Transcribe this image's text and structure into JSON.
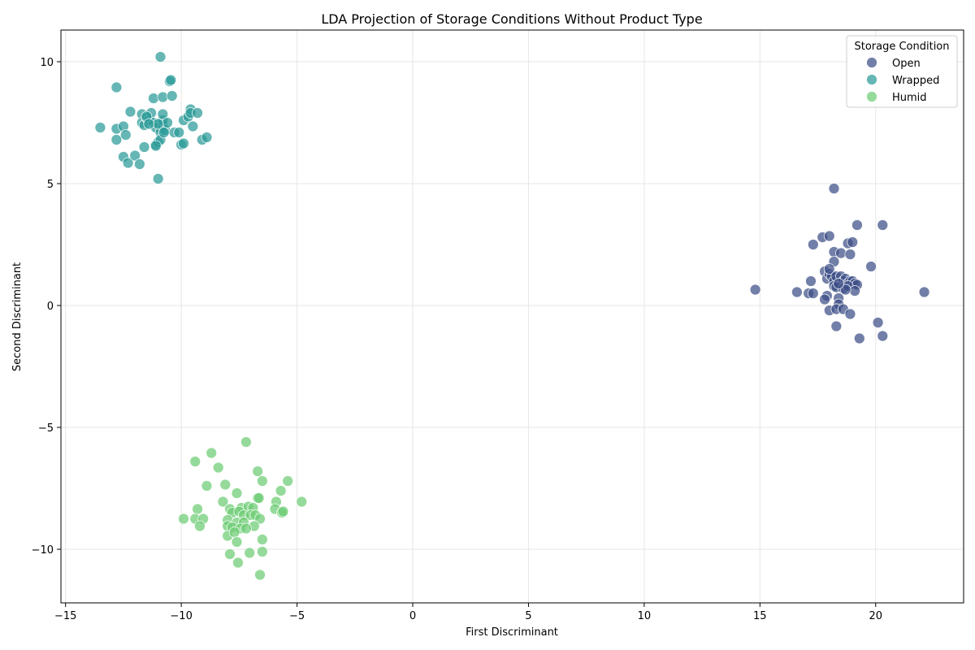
{
  "chart_data": {
    "type": "scatter",
    "title": "LDA Projection of Storage Conditions Without Product Type",
    "xlabel": "First Discriminant",
    "ylabel": "Second Discriminant",
    "xlim": [
      -15.2,
      23.8
    ],
    "ylim": [
      -12.2,
      11.3
    ],
    "xticks": [
      -15,
      -10,
      -5,
      0,
      5,
      10,
      15,
      20
    ],
    "yticks": [
      -10,
      -5,
      0,
      5,
      10
    ],
    "xtick_labels": [
      "−15",
      "−10",
      "−5",
      "0",
      "5",
      "10",
      "15",
      "20"
    ],
    "ytick_labels": [
      "−10",
      "−5",
      "0",
      "5",
      "10"
    ],
    "grid": true,
    "legend": {
      "title": "Storage Condition",
      "placement": "top-right"
    },
    "series": [
      {
        "name": "Open",
        "color": "#3b4d87",
        "points": [
          [
            14.8,
            0.65
          ],
          [
            16.6,
            0.55
          ],
          [
            17.1,
            0.5
          ],
          [
            17.3,
            0.5
          ],
          [
            17.2,
            1.0
          ],
          [
            17.3,
            2.5
          ],
          [
            17.7,
            2.8
          ],
          [
            18.0,
            2.85
          ],
          [
            18.2,
            4.8
          ],
          [
            18.2,
            2.2
          ],
          [
            18.2,
            1.8
          ],
          [
            18.5,
            2.15
          ],
          [
            18.8,
            2.55
          ],
          [
            19.0,
            2.6
          ],
          [
            19.2,
            3.3
          ],
          [
            20.3,
            3.3
          ],
          [
            18.9,
            2.1
          ],
          [
            19.8,
            1.6
          ],
          [
            17.8,
            1.4
          ],
          [
            17.9,
            1.1
          ],
          [
            18.0,
            1.3
          ],
          [
            18.1,
            1.2
          ],
          [
            18.0,
            1.5
          ],
          [
            18.2,
            1.0
          ],
          [
            18.3,
            1.2
          ],
          [
            18.5,
            1.2
          ],
          [
            18.6,
            1.0
          ],
          [
            18.7,
            1.1
          ],
          [
            18.8,
            0.9
          ],
          [
            18.9,
            1.0
          ],
          [
            19.0,
            1.0
          ],
          [
            19.1,
            0.9
          ],
          [
            19.2,
            0.85
          ],
          [
            18.2,
            0.8
          ],
          [
            18.3,
            0.75
          ],
          [
            18.6,
            0.7
          ],
          [
            18.8,
            0.8
          ],
          [
            19.1,
            0.6
          ],
          [
            18.7,
            0.65
          ],
          [
            18.4,
            0.9
          ],
          [
            17.9,
            0.4
          ],
          [
            17.8,
            0.25
          ],
          [
            18.4,
            0.3
          ],
          [
            18.4,
            0.05
          ],
          [
            18.0,
            -0.2
          ],
          [
            18.3,
            -0.15
          ],
          [
            18.6,
            -0.15
          ],
          [
            18.9,
            -0.35
          ],
          [
            18.3,
            -0.85
          ],
          [
            19.3,
            -1.35
          ],
          [
            20.1,
            -0.7
          ],
          [
            20.3,
            -1.25
          ],
          [
            22.1,
            0.55
          ]
        ]
      },
      {
        "name": "Wrapped",
        "color": "#2a9a97",
        "points": [
          [
            -13.5,
            7.3
          ],
          [
            -12.8,
            8.95
          ],
          [
            -12.8,
            7.25
          ],
          [
            -12.8,
            6.8
          ],
          [
            -12.5,
            7.35
          ],
          [
            -12.5,
            6.1
          ],
          [
            -12.4,
            7.0
          ],
          [
            -12.3,
            5.85
          ],
          [
            -12.2,
            7.95
          ],
          [
            -12.0,
            6.15
          ],
          [
            -11.8,
            5.8
          ],
          [
            -11.7,
            7.85
          ],
          [
            -11.7,
            7.5
          ],
          [
            -11.6,
            7.4
          ],
          [
            -11.6,
            6.5
          ],
          [
            -11.5,
            7.7
          ],
          [
            -11.4,
            7.6
          ],
          [
            -11.3,
            7.9
          ],
          [
            -11.2,
            7.5
          ],
          [
            -11.2,
            8.5
          ],
          [
            -11.1,
            7.3
          ],
          [
            -11.1,
            6.6
          ],
          [
            -11.0,
            6.7
          ],
          [
            -11.0,
            5.2
          ],
          [
            -10.9,
            7.1
          ],
          [
            -10.9,
            6.8
          ],
          [
            -10.8,
            7.4
          ],
          [
            -10.8,
            7.6
          ],
          [
            -10.8,
            8.55
          ],
          [
            -10.8,
            7.85
          ],
          [
            -10.7,
            7.2
          ],
          [
            -10.6,
            7.5
          ],
          [
            -10.9,
            10.2
          ],
          [
            -10.5,
            9.2
          ],
          [
            -10.45,
            9.25
          ],
          [
            -10.4,
            8.6
          ],
          [
            -10.3,
            7.1
          ],
          [
            -10.1,
            7.1
          ],
          [
            -10.0,
            6.6
          ],
          [
            -9.9,
            6.65
          ],
          [
            -9.9,
            7.6
          ],
          [
            -9.7,
            7.75
          ],
          [
            -9.6,
            8.05
          ],
          [
            -9.6,
            7.9
          ],
          [
            -9.5,
            7.35
          ],
          [
            -9.3,
            7.9
          ],
          [
            -9.1,
            6.8
          ],
          [
            -8.9,
            6.9
          ],
          [
            -11.5,
            7.75
          ],
          [
            -11.0,
            7.45
          ],
          [
            -10.75,
            7.1
          ],
          [
            -11.1,
            6.55
          ],
          [
            -11.4,
            7.45
          ]
        ]
      },
      {
        "name": "Humid",
        "color": "#6ccc73",
        "points": [
          [
            -7.2,
            -5.6
          ],
          [
            -8.7,
            -6.05
          ],
          [
            -9.4,
            -6.4
          ],
          [
            -8.4,
            -6.65
          ],
          [
            -6.7,
            -6.8
          ],
          [
            -6.5,
            -7.2
          ],
          [
            -5.4,
            -7.2
          ],
          [
            -8.9,
            -7.4
          ],
          [
            -8.1,
            -7.35
          ],
          [
            -7.6,
            -7.7
          ],
          [
            -5.7,
            -7.6
          ],
          [
            -6.7,
            -7.9
          ],
          [
            -6.65,
            -7.9
          ],
          [
            -4.8,
            -8.05
          ],
          [
            -8.2,
            -8.05
          ],
          [
            -5.9,
            -8.05
          ],
          [
            -9.3,
            -8.35
          ],
          [
            -7.9,
            -8.35
          ],
          [
            -7.4,
            -8.3
          ],
          [
            -7.1,
            -8.25
          ],
          [
            -6.9,
            -8.3
          ],
          [
            -5.95,
            -8.35
          ],
          [
            -5.65,
            -8.5
          ],
          [
            -5.6,
            -8.45
          ],
          [
            -7.8,
            -8.5
          ],
          [
            -7.5,
            -8.45
          ],
          [
            -7.3,
            -8.6
          ],
          [
            -7.0,
            -8.6
          ],
          [
            -6.8,
            -8.6
          ],
          [
            -6.6,
            -8.75
          ],
          [
            -9.9,
            -8.75
          ],
          [
            -9.4,
            -8.75
          ],
          [
            -9.05,
            -8.75
          ],
          [
            -8.0,
            -8.8
          ],
          [
            -7.6,
            -8.9
          ],
          [
            -7.3,
            -8.9
          ],
          [
            -6.85,
            -9.05
          ],
          [
            -8.0,
            -9.05
          ],
          [
            -7.8,
            -9.1
          ],
          [
            -7.45,
            -9.15
          ],
          [
            -7.2,
            -9.15
          ],
          [
            -9.2,
            -9.05
          ],
          [
            -8.0,
            -9.45
          ],
          [
            -7.7,
            -9.3
          ],
          [
            -7.6,
            -9.7
          ],
          [
            -6.5,
            -9.6
          ],
          [
            -7.9,
            -10.2
          ],
          [
            -7.05,
            -10.15
          ],
          [
            -6.5,
            -10.1
          ],
          [
            -7.55,
            -10.55
          ],
          [
            -6.6,
            -11.05
          ]
        ]
      }
    ]
  }
}
